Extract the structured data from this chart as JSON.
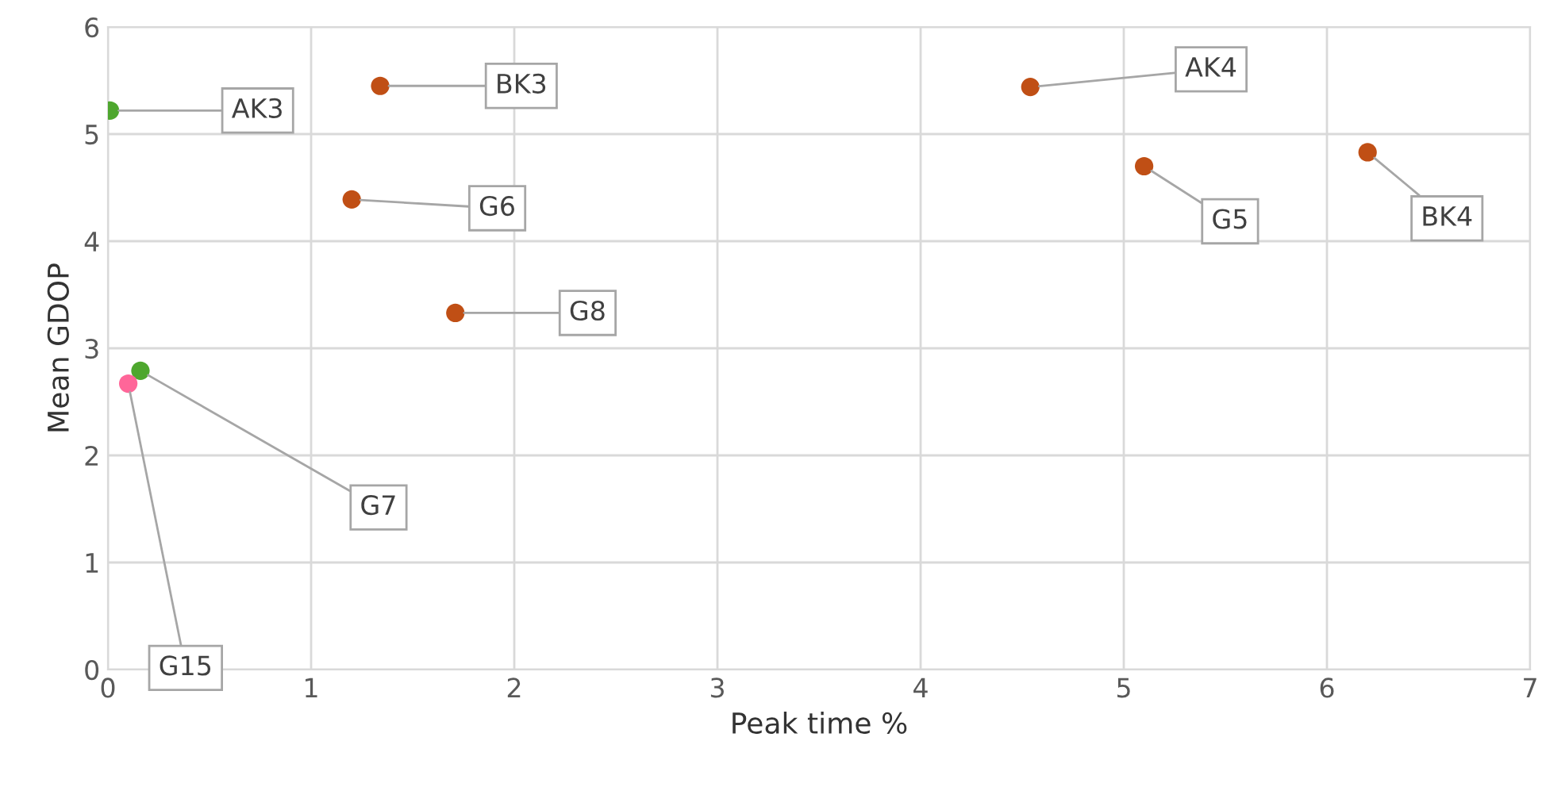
{
  "chart_data": {
    "type": "scatter",
    "xlabel": "Peak time %",
    "ylabel": "Mean GDOP",
    "x": [
      0.01,
      1.34,
      1.2,
      1.71,
      4.54,
      5.1,
      6.2,
      0.16,
      0.1
    ],
    "values": [
      5.22,
      5.45,
      4.39,
      3.33,
      5.44,
      4.7,
      4.83,
      2.79,
      2.67
    ],
    "colors": [
      "#4ea72e",
      "#c04f15",
      "#c04f15",
      "#c04f15",
      "#c04f15",
      "#c04f15",
      "#c04f15",
      "#4ea72e",
      "#ff6699"
    ],
    "xlim": [
      0,
      7
    ],
    "ylim": [
      0,
      6
    ],
    "xticks": [
      0,
      1,
      2,
      3,
      4,
      5,
      6,
      7
    ],
    "yticks": [
      0,
      1,
      2,
      3,
      4,
      5,
      6
    ],
    "grid": true,
    "marker": "circle",
    "annotations": [
      {
        "text": "AK3",
        "x": 0.01,
        "y": 5.22
      },
      {
        "text": "BK3",
        "x": 1.34,
        "y": 5.45
      },
      {
        "text": "G6",
        "x": 1.2,
        "y": 4.39
      },
      {
        "text": "G8",
        "x": 1.71,
        "y": 3.33
      },
      {
        "text": "AK4",
        "x": 4.54,
        "y": 5.44
      },
      {
        "text": "G5",
        "x": 5.1,
        "y": 4.7
      },
      {
        "text": "BK4",
        "x": 6.2,
        "y": 4.83
      },
      {
        "text": "G7",
        "x": 0.16,
        "y": 2.79
      },
      {
        "text": "G15",
        "x": 0.1,
        "y": 2.67
      }
    ]
  }
}
